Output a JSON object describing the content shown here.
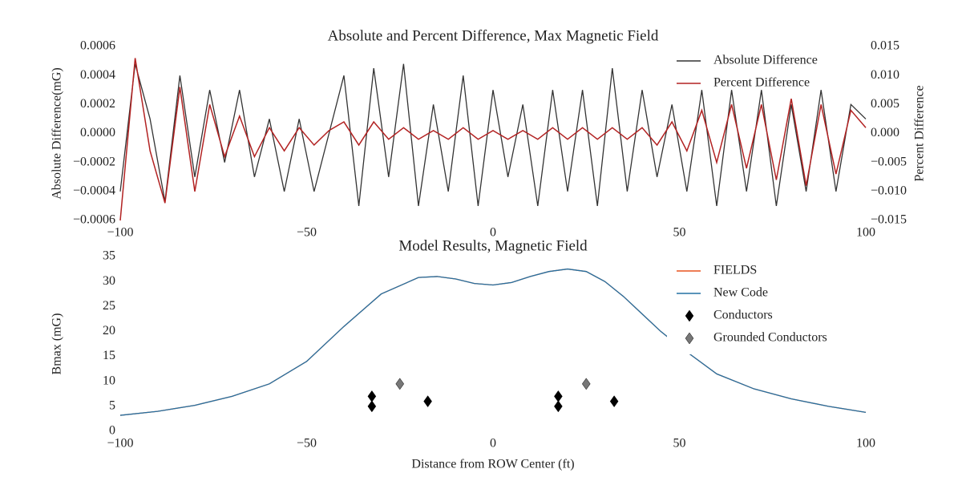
{
  "chart_data": [
    {
      "type": "line",
      "title": "Absolute and Percent Difference, Max Magnetic Field",
      "ylabel": "Absolute Difference(mG)",
      "y2label": "Percent Difference",
      "y2color": "#b22222",
      "x": [
        -100,
        -96,
        -92,
        -88,
        -84,
        -80,
        -76,
        -72,
        -68,
        -64,
        -60,
        -56,
        -52,
        -48,
        -44,
        -40,
        -36,
        -32,
        -28,
        -24,
        -20,
        -16,
        -12,
        -8,
        -4,
        0,
        4,
        8,
        12,
        16,
        20,
        24,
        28,
        32,
        36,
        40,
        44,
        48,
        52,
        56,
        60,
        64,
        68,
        72,
        76,
        80,
        84,
        88,
        92,
        96,
        100
      ],
      "xlim": [
        -100,
        100
      ],
      "xticks": [
        {
          "value": -100,
          "label": "−100"
        },
        {
          "value": -50,
          "label": "−50"
        },
        0,
        50,
        100
      ],
      "ylim": [
        -0.0006,
        0.0006
      ],
      "yticks": [
        {
          "value": -0.0006,
          "label": "−0.0006"
        },
        {
          "value": -0.0004,
          "label": "−0.0004"
        },
        {
          "value": -0.0002,
          "label": "−0.0002"
        },
        {
          "value": 0,
          "label": "0.0000"
        },
        {
          "value": 0.0002,
          "label": "0.0002"
        },
        {
          "value": 0.0004,
          "label": "0.0004"
        },
        {
          "value": 0.0006,
          "label": "0.0006"
        }
      ],
      "y2lim": [
        -0.015,
        0.015
      ],
      "y2ticks": [
        {
          "value": -0.015,
          "label": "−0.015"
        },
        {
          "value": -0.01,
          "label": "−0.010"
        },
        {
          "value": -0.005,
          "label": "−0.005"
        },
        {
          "value": 0,
          "label": "0.000"
        },
        {
          "value": 0.005,
          "label": "0.005"
        },
        {
          "value": 0.01,
          "label": "0.010"
        },
        {
          "value": 0.015,
          "label": "0.015"
        }
      ],
      "legend": "upper right",
      "series": [
        {
          "name": "Absolute Difference",
          "color": "#333333",
          "values": [
            -0.0004,
            0.00048,
            0.0001,
            -0.00047,
            0.0004,
            -0.0003,
            0.0003,
            -0.0002,
            0.0003,
            -0.0003,
            0.0001,
            -0.0004,
            0.0001,
            -0.0004,
            0.0,
            0.0004,
            -0.0005,
            0.00045,
            -0.0003,
            0.00048,
            -0.0005,
            0.0002,
            -0.0004,
            0.0004,
            -0.0005,
            0.0003,
            -0.0003,
            0.0002,
            -0.0005,
            0.0003,
            -0.0004,
            0.0003,
            -0.0005,
            0.00045,
            -0.0004,
            0.0003,
            -0.0003,
            0.0002,
            -0.0004,
            0.0003,
            -0.0005,
            0.0003,
            -0.0004,
            0.0003,
            -0.0005,
            0.0002,
            -0.0004,
            0.0003,
            -0.0004,
            0.0002,
            0.0001
          ]
        },
        {
          "name": "Percent Difference",
          "color": "#b22222",
          "axis": "y2",
          "values": [
            -0.015,
            0.013,
            -0.003,
            -0.012,
            0.008,
            -0.01,
            0.005,
            -0.004,
            0.003,
            -0.004,
            0.001,
            -0.003,
            0.001,
            -0.002,
            0.0005,
            0.002,
            -0.002,
            0.002,
            -0.001,
            0.001,
            -0.001,
            0.0005,
            -0.001,
            0.001,
            -0.001,
            0.0005,
            -0.001,
            0.0005,
            -0.001,
            0.001,
            -0.001,
            0.001,
            -0.001,
            0.001,
            -0.001,
            0.001,
            -0.002,
            0.002,
            -0.003,
            0.004,
            -0.005,
            0.005,
            -0.006,
            0.005,
            -0.008,
            0.006,
            -0.009,
            0.005,
            -0.007,
            0.004,
            0.001
          ]
        }
      ]
    },
    {
      "type": "line",
      "title": "Model Results, Magnetic Field",
      "ylabel": "Bmax (mG)",
      "xlabel": "Distance from ROW Center (ft)",
      "xlim": [
        -100,
        100
      ],
      "xticks": [
        {
          "value": -100,
          "label": "−100"
        },
        {
          "value": -50,
          "label": "−50"
        },
        0,
        50,
        100
      ],
      "ylim": [
        0,
        35
      ],
      "yticks": [
        0,
        5,
        10,
        15,
        20,
        25,
        30,
        35
      ],
      "legend": "upper right",
      "series": [
        {
          "name": "FIELDS",
          "color": "#e8541e",
          "x": [
            -100,
            -90,
            -80,
            -70,
            -60,
            -50,
            -40,
            -30,
            -20,
            -15,
            -10,
            -5,
            0,
            5,
            10,
            15,
            20,
            25,
            30,
            35,
            40,
            45,
            50,
            60,
            70,
            80,
            90,
            100
          ],
          "values": [
            3.2,
            4,
            5.2,
            7,
            9.5,
            14,
            21,
            27.5,
            30.8,
            31,
            30.5,
            29.6,
            29.3,
            29.8,
            31,
            32,
            32.5,
            32,
            30,
            27,
            23.5,
            20,
            17,
            11.5,
            8.5,
            6.5,
            5,
            3.8
          ]
        },
        {
          "name": "New Code",
          "color": "#2471a3",
          "x": [
            -100,
            -90,
            -80,
            -70,
            -60,
            -50,
            -40,
            -30,
            -20,
            -15,
            -10,
            -5,
            0,
            5,
            10,
            15,
            20,
            25,
            30,
            35,
            40,
            45,
            50,
            60,
            70,
            80,
            90,
            100
          ],
          "values": [
            3.2,
            4,
            5.2,
            7,
            9.5,
            14,
            21,
            27.5,
            30.8,
            31,
            30.5,
            29.6,
            29.3,
            29.8,
            31,
            32,
            32.5,
            32,
            30,
            27,
            23.5,
            20,
            17,
            11.5,
            8.5,
            6.5,
            5,
            3.8
          ]
        },
        {
          "name": "Conductors",
          "color": "#000000",
          "marker": "diamond",
          "x": [
            -32.5,
            -32.5,
            -17.5,
            17.5,
            17.5,
            32.5
          ],
          "values": [
            7,
            5,
            6,
            7,
            5,
            6
          ]
        },
        {
          "name": "Grounded Conductors",
          "color": "#777777",
          "marker": "diamond",
          "x": [
            -25,
            25
          ],
          "values": [
            9.5,
            9.5
          ]
        }
      ]
    }
  ]
}
